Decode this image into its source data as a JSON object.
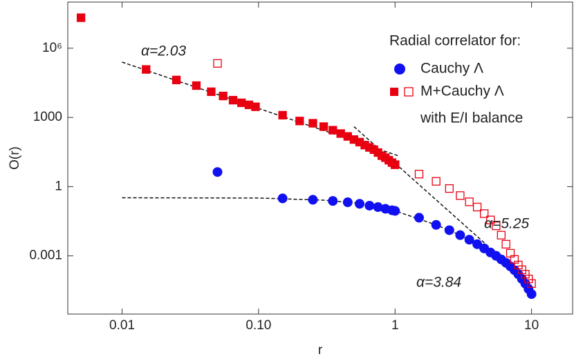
{
  "chart_data": {
    "type": "scatter",
    "x_label": "r",
    "y_label": "O(r)",
    "log_x": true,
    "log_y": true,
    "xlim": [
      0.004,
      20
    ],
    "ylim": [
      3e-06,
      100000000
    ],
    "xticks": [
      0.01,
      {
        "value": 0.1,
        "label": "0.10"
      },
      1,
      10
    ],
    "yticks": [
      0.001,
      1,
      1000,
      {
        "value": 1000000,
        "label": "10⁶"
      }
    ],
    "legend_title": "Radial correlator for:",
    "legend_note": "with E/I balance",
    "legend_position": "upper right",
    "series": [
      {
        "name": "Cauchy Λ",
        "color": "#1010f0",
        "marker": "circle",
        "filled": true,
        "x": [
          0.05,
          0.15,
          0.25,
          0.35,
          0.45,
          0.55,
          0.65,
          0.75,
          0.85,
          0.95,
          1,
          1.5,
          2,
          2.5,
          3,
          3.5,
          4,
          4.5,
          5,
          5.5,
          6,
          6.5,
          7,
          7.5,
          8,
          8.5,
          9,
          9.5,
          10
        ],
        "values": [
          4.3,
          0.31,
          0.27,
          0.24,
          0.21,
          0.18,
          0.15,
          0.13,
          0.11,
          0.095,
          0.089,
          0.045,
          0.022,
          0.013,
          0.0079,
          0.005,
          0.0032,
          0.0021,
          0.0014,
          0.001,
          0.0007,
          0.0005,
          0.00035,
          0.00024,
          0.00016,
          0.0001,
          6.3e-05,
          3.7e-05,
          2.2e-05
        ]
      },
      {
        "name": "M+Cauchy Λ",
        "color": "#e80010",
        "marker": "square",
        "filled": true,
        "x": [
          0.005,
          0.015,
          0.025,
          0.035,
          0.045,
          0.055,
          0.065,
          0.075,
          0.085,
          0.095,
          0.15,
          0.2,
          0.25,
          0.3,
          0.35,
          0.4,
          0.45,
          0.5,
          0.55,
          0.6,
          0.65,
          0.7,
          0.75,
          0.8,
          0.85,
          0.9,
          0.95,
          1
        ],
        "values": [
          21000000,
          120000,
          42000,
          24000,
          13000,
          8500,
          5600,
          4300,
          3500,
          2900,
          1250,
          700,
          560,
          400,
          280,
          200,
          150,
          110,
          85,
          63,
          50,
          40,
          30,
          22,
          18,
          14,
          11,
          9
        ]
      },
      {
        "color": "#e80010",
        "marker": "square",
        "filled": false,
        "x": [
          0.05,
          1,
          1.5,
          2,
          2.5,
          3,
          3.5,
          4,
          4.5,
          5,
          5.5,
          6,
          6.5,
          7,
          7.5,
          8,
          8.5,
          9,
          9.5,
          10
        ],
        "values": [
          220000,
          8.9,
          3.5,
          1.7,
          0.83,
          0.41,
          0.22,
          0.13,
          0.068,
          0.036,
          0.02,
          0.0079,
          0.0032,
          0.0013,
          0.0007,
          0.0004,
          0.00025,
          0.00016,
          0.0001,
          6.3e-05
        ]
      }
    ],
    "fit_lines": [
      {
        "label": "α=2.03",
        "x": [
          0.01,
          1.05
        ],
        "values": [
          250000,
          22
        ]
      },
      {
        "label": "α=5.25",
        "x": [
          0.5,
          10
        ],
        "values": [
          400,
          5.5e-05
        ]
      },
      {
        "label": "α=3.84",
        "x": [
          0.01,
          0.1,
          0.3,
          0.5,
          1,
          2,
          3,
          5,
          7,
          10
        ],
        "values": [
          0.33,
          0.32,
          0.26,
          0.2,
          0.09,
          0.022,
          0.008,
          0.0014,
          0.00035,
          2.5e-05
        ]
      }
    ]
  }
}
